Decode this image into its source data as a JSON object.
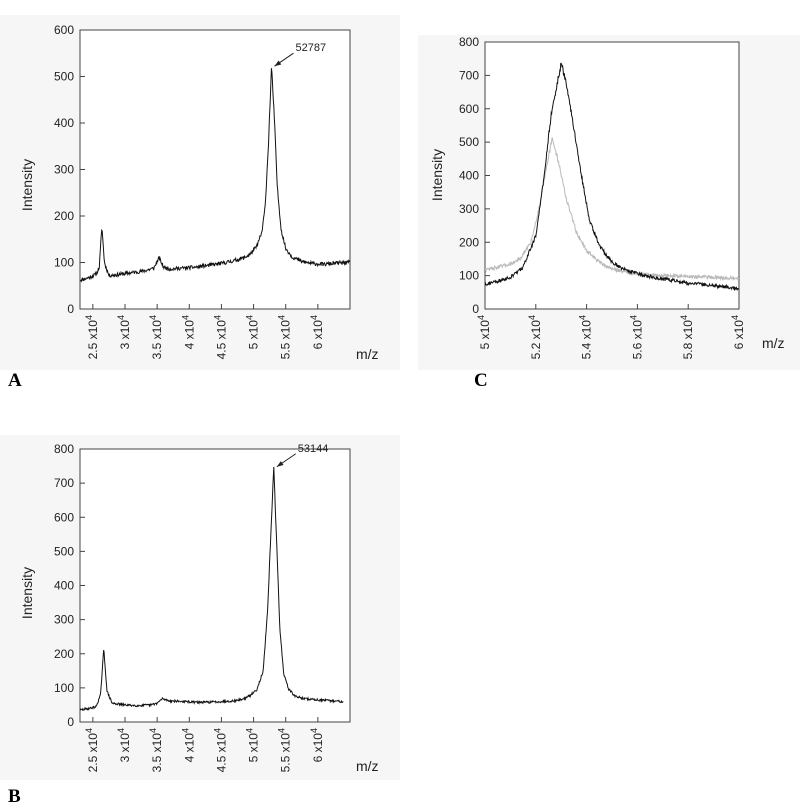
{
  "panel_labels": {
    "a": "A",
    "b": "B",
    "c": "C"
  },
  "chart_data": [
    {
      "id": "A",
      "type": "line",
      "title": "",
      "xlabel": "m/z",
      "ylabel": "Intensity",
      "xlim": [
        23000,
        65000
      ],
      "ylim": [
        0,
        600
      ],
      "x_ticks": [
        25000,
        30000,
        35000,
        40000,
        45000,
        50000,
        55000,
        60000
      ],
      "x_tick_labels": [
        {
          "base": "2.5 x10",
          "exp": "4"
        },
        {
          "base": "3 x10",
          "exp": "4"
        },
        {
          "base": "3.5 x10",
          "exp": "4"
        },
        {
          "base": "4 x10",
          "exp": "4"
        },
        {
          "base": "4.5 x10",
          "exp": "4"
        },
        {
          "base": "5 x10",
          "exp": "4"
        },
        {
          "base": "5.5 x10",
          "exp": "4"
        },
        {
          "base": "6 x10",
          "exp": "4"
        }
      ],
      "y_ticks": [
        0,
        100,
        200,
        300,
        400,
        500,
        600
      ],
      "annotation": {
        "text": "52787",
        "x": 52787,
        "y": 520
      },
      "series": [
        {
          "color": "#111111",
          "points": [
            [
              23000,
              62
            ],
            [
              24500,
              68
            ],
            [
              25500,
              75
            ],
            [
              26000,
              90
            ],
            [
              26400,
              178
            ],
            [
              26800,
              100
            ],
            [
              27500,
              72
            ],
            [
              29000,
              74
            ],
            [
              31000,
              78
            ],
            [
              33000,
              82
            ],
            [
              34500,
              88
            ],
            [
              35300,
              110
            ],
            [
              36000,
              90
            ],
            [
              37000,
              86
            ],
            [
              39000,
              88
            ],
            [
              41000,
              90
            ],
            [
              43000,
              94
            ],
            [
              45000,
              98
            ],
            [
              47000,
              104
            ],
            [
              48500,
              110
            ],
            [
              49500,
              118
            ],
            [
              50500,
              135
            ],
            [
              51300,
              165
            ],
            [
              51800,
              220
            ],
            [
              52300,
              350
            ],
            [
              52787,
              520
            ],
            [
              53200,
              420
            ],
            [
              53700,
              260
            ],
            [
              54300,
              170
            ],
            [
              55000,
              130
            ],
            [
              56000,
              112
            ],
            [
              57500,
              102
            ],
            [
              59000,
              98
            ],
            [
              61000,
              96
            ],
            [
              63000,
              99
            ],
            [
              65000,
              100
            ]
          ]
        }
      ]
    },
    {
      "id": "B",
      "type": "line",
      "title": "",
      "xlabel": "m/z",
      "ylabel": "Intensity",
      "xlim": [
        23000,
        65000
      ],
      "ylim": [
        0,
        800
      ],
      "x_ticks": [
        25000,
        30000,
        35000,
        40000,
        45000,
        50000,
        55000,
        60000
      ],
      "x_tick_labels": [
        {
          "base": "2.5 x10",
          "exp": "4"
        },
        {
          "base": "3 x10",
          "exp": "4"
        },
        {
          "base": "3.5 x10",
          "exp": "4"
        },
        {
          "base": "4 x10",
          "exp": "4"
        },
        {
          "base": "4.5 x10",
          "exp": "4"
        },
        {
          "base": "5 x10",
          "exp": "4"
        },
        {
          "base": "5.5 x10",
          "exp": "4"
        },
        {
          "base": "6 x10",
          "exp": "4"
        }
      ],
      "y_ticks": [
        0,
        100,
        200,
        300,
        400,
        500,
        600,
        700,
        800
      ],
      "annotation": {
        "text": "53144",
        "x": 53144,
        "y": 745
      },
      "series": [
        {
          "color": "#111111",
          "points": [
            [
              23000,
              35
            ],
            [
              24500,
              40
            ],
            [
              25500,
              45
            ],
            [
              26200,
              80
            ],
            [
              26700,
              215
            ],
            [
              27200,
              90
            ],
            [
              28000,
              55
            ],
            [
              30000,
              50
            ],
            [
              32000,
              48
            ],
            [
              34000,
              50
            ],
            [
              35000,
              55
            ],
            [
              35800,
              68
            ],
            [
              37000,
              62
            ],
            [
              39000,
              60
            ],
            [
              41000,
              58
            ],
            [
              43000,
              58
            ],
            [
              45000,
              60
            ],
            [
              47000,
              62
            ],
            [
              48500,
              68
            ],
            [
              49500,
              78
            ],
            [
              50500,
              95
            ],
            [
              51500,
              150
            ],
            [
              52200,
              330
            ],
            [
              52700,
              560
            ],
            [
              53144,
              745
            ],
            [
              53600,
              520
            ],
            [
              54100,
              270
            ],
            [
              54700,
              140
            ],
            [
              55500,
              95
            ],
            [
              56500,
              75
            ],
            [
              58000,
              68
            ],
            [
              60000,
              65
            ],
            [
              62000,
              62
            ],
            [
              64000,
              60
            ]
          ]
        }
      ]
    },
    {
      "id": "C",
      "type": "line",
      "title": "",
      "xlabel": "m/z",
      "ylabel": "Intensity",
      "xlim": [
        50000,
        60000
      ],
      "ylim": [
        0,
        800
      ],
      "x_ticks": [
        50000,
        52000,
        54000,
        56000,
        58000,
        60000
      ],
      "x_tick_labels": [
        {
          "base": "5 x10",
          "exp": "4"
        },
        {
          "base": "5.2 x10",
          "exp": "4"
        },
        {
          "base": "5.4 x10",
          "exp": "4"
        },
        {
          "base": "5.6 x10",
          "exp": "4"
        },
        {
          "base": "5.8 x10",
          "exp": "4"
        },
        {
          "base": "6 x10",
          "exp": "4"
        }
      ],
      "y_ticks": [
        0,
        100,
        200,
        300,
        400,
        500,
        600,
        700,
        800
      ],
      "series": [
        {
          "color": "#b9b9b9",
          "points": [
            [
              50000,
              118
            ],
            [
              50500,
              125
            ],
            [
              51000,
              135
            ],
            [
              51400,
              150
            ],
            [
              51800,
              200
            ],
            [
              52100,
              290
            ],
            [
              52400,
              420
            ],
            [
              52650,
              510
            ],
            [
              52900,
              440
            ],
            [
              53200,
              330
            ],
            [
              53600,
              230
            ],
            [
              54000,
              175
            ],
            [
              54500,
              140
            ],
            [
              55000,
              120
            ],
            [
              56000,
              105
            ],
            [
              57000,
              100
            ],
            [
              58000,
              98
            ],
            [
              59000,
              95
            ],
            [
              60000,
              92
            ]
          ]
        },
        {
          "color": "#111111",
          "points": [
            [
              50000,
              75
            ],
            [
              50500,
              82
            ],
            [
              51000,
              95
            ],
            [
              51500,
              125
            ],
            [
              52000,
              220
            ],
            [
              52300,
              380
            ],
            [
              52600,
              580
            ],
            [
              52850,
              680
            ],
            [
              53000,
              735
            ],
            [
              53200,
              680
            ],
            [
              53500,
              540
            ],
            [
              53800,
              400
            ],
            [
              54100,
              270
            ],
            [
              54500,
              190
            ],
            [
              55000,
              140
            ],
            [
              55500,
              118
            ],
            [
              56000,
              105
            ],
            [
              57000,
              90
            ],
            [
              58000,
              78
            ],
            [
              59000,
              70
            ],
            [
              60000,
              62
            ]
          ]
        }
      ]
    }
  ]
}
